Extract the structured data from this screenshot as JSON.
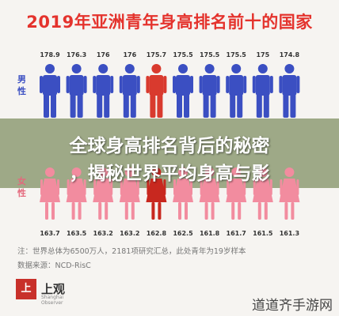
{
  "title": "2019年亚洲青年身高排名前十的国家",
  "overlay": {
    "line1": "全球身高排名背后的秘密",
    "line2": "，揭秘世界平均身高与影"
  },
  "notes": {
    "line1": "注：世界总体为6500万人，2181项研究汇总，此处青年为19岁样本",
    "line2": "数据来源：NCD-RisC"
  },
  "logo": {
    "mark": "上",
    "text": "上观",
    "sub": "Shanghai Observer"
  },
  "watermark": "道道齐手游网",
  "colors": {
    "male": "#3b4fc2",
    "male_highlight": "#d93a2e",
    "female": "#f28c9f",
    "female_highlight": "#c8281f",
    "title": "#e4332d"
  },
  "chart_data": {
    "type": "bar",
    "title": "2019年亚洲青年身高排名前十的国家",
    "series": [
      {
        "name": "男性",
        "values": [
          178.9,
          176.3,
          176,
          176,
          175.7,
          175.5,
          175.5,
          175.5,
          175,
          174.8
        ]
      },
      {
        "name": "女性",
        "values": [
          163.7,
          163.5,
          163.2,
          163.2,
          162.8,
          162.5,
          161.8,
          161.7,
          161.5,
          161.3
        ]
      }
    ],
    "male_labels": [
      "178.9",
      "176.3",
      "176",
      "176",
      "175.7",
      "175.5",
      "175.5",
      "175.5",
      "175",
      "174.8"
    ],
    "female_labels": [
      "163.7",
      "163.5",
      "163.2",
      "163.2",
      "162.8",
      "162.5",
      "161.8",
      "161.7",
      "161.5",
      "161.3"
    ],
    "highlight_index": 4
  }
}
